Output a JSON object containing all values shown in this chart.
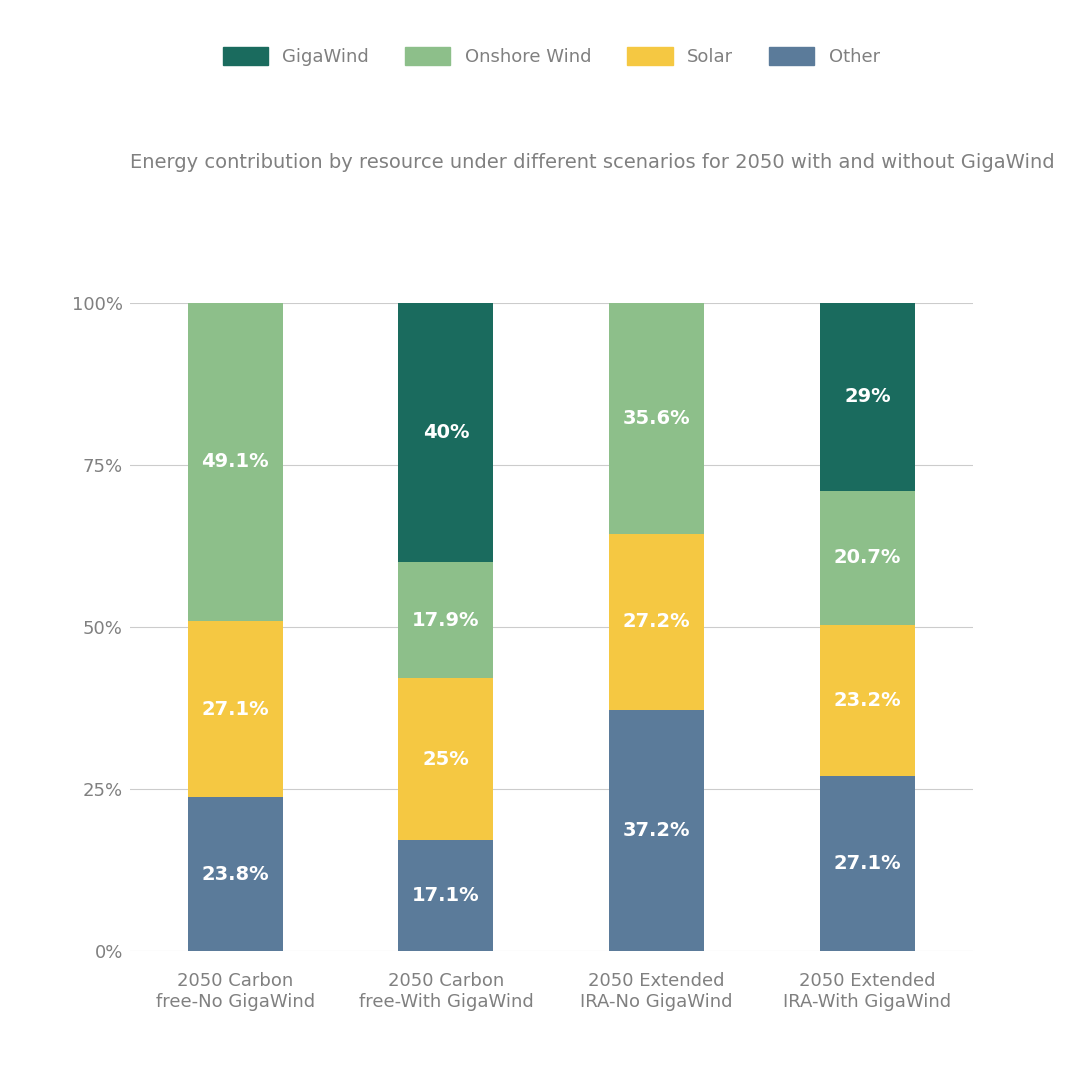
{
  "title": "Energy contribution by resource under different scenarios for 2050 with and without GigaWind",
  "categories": [
    "2050 Carbon\nfree-No GigaWind",
    "2050 Carbon\nfree-With GigaWind",
    "2050 Extended\nIRA-No GigaWind",
    "2050 Extended\nIRA-With GigaWind"
  ],
  "segments": {
    "Other": {
      "values": [
        23.8,
        17.1,
        37.2,
        27.1
      ],
      "color": "#5b7b9a"
    },
    "Solar": {
      "values": [
        27.1,
        25.0,
        27.2,
        23.2
      ],
      "color": "#f5c842"
    },
    "Onshore Wind": {
      "values": [
        49.1,
        17.9,
        35.6,
        20.7
      ],
      "color": "#8dbf8a"
    },
    "GigaWind": {
      "values": [
        0.0,
        40.0,
        0.0,
        29.0
      ],
      "color": "#1a6b5e"
    }
  },
  "segment_order": [
    "Other",
    "Solar",
    "Onshore Wind",
    "GigaWind"
  ],
  "legend_order": [
    "GigaWind",
    "Onshore Wind",
    "Solar",
    "Other"
  ],
  "yticks": [
    0,
    25,
    50,
    75,
    100
  ],
  "ytick_labels": [
    "0%",
    "25%",
    "50%",
    "75%",
    "100%"
  ],
  "background_color": "#ffffff",
  "title_color": "#808080",
  "tick_color": "#808080",
  "grid_color": "#cccccc",
  "bar_width": 0.45,
  "title_fontsize": 14,
  "label_fontsize": 13,
  "tick_fontsize": 13,
  "legend_fontsize": 13,
  "annotation_fontsize": 14,
  "annotation_color": "#ffffff"
}
